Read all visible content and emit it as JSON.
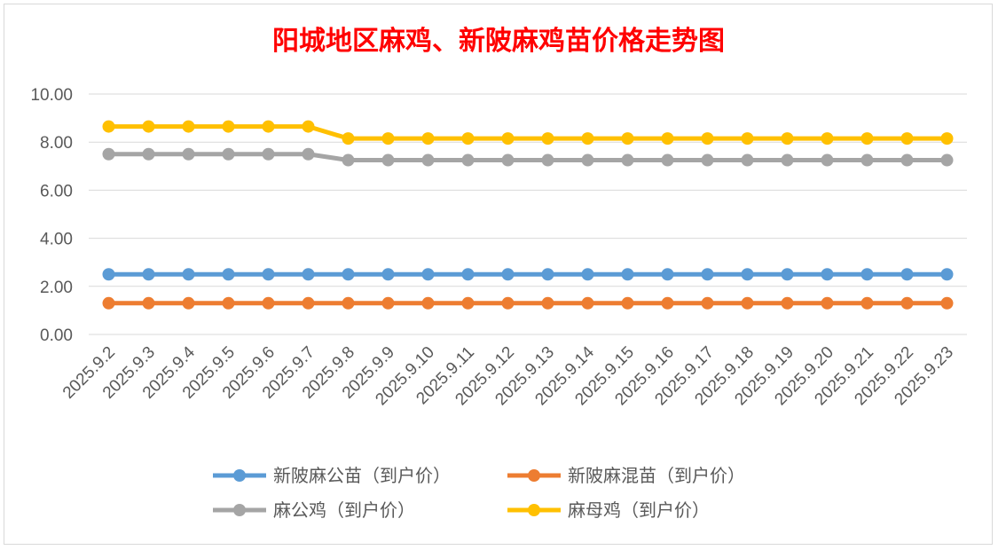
{
  "chart_data": {
    "type": "line",
    "title": "阳城地区麻鸡、新陂麻鸡苗价格走势图",
    "xlabel": "",
    "ylabel": "",
    "ylim": [
      0,
      10
    ],
    "yticks": [
      "0.00",
      "2.00",
      "4.00",
      "6.00",
      "8.00",
      "10.00"
    ],
    "grid": true,
    "legend_position": "bottom",
    "categories": [
      "2025.9.2",
      "2025.9.3",
      "2025.9.4",
      "2025.9.5",
      "2025.9.6",
      "2025.9.7",
      "2025.9.8",
      "2025.9.9",
      "2025.9.10",
      "2025.9.11",
      "2025.9.12",
      "2025.9.13",
      "2025.9.14",
      "2025.9.15",
      "2025.9.16",
      "2025.9.17",
      "2025.9.18",
      "2025.9.19",
      "2025.9.20",
      "2025.9.21",
      "2025.9.22",
      "2025.9.23"
    ],
    "series": [
      {
        "name": "新陂麻公苗（到户价）",
        "color": "#5b9bd5",
        "values": [
          2.5,
          2.5,
          2.5,
          2.5,
          2.5,
          2.5,
          2.5,
          2.5,
          2.5,
          2.5,
          2.5,
          2.5,
          2.5,
          2.5,
          2.5,
          2.5,
          2.5,
          2.5,
          2.5,
          2.5,
          2.5,
          2.5
        ]
      },
      {
        "name": "新陂麻混苗（到户价）",
        "color": "#ed7d31",
        "values": [
          1.3,
          1.3,
          1.3,
          1.3,
          1.3,
          1.3,
          1.3,
          1.3,
          1.3,
          1.3,
          1.3,
          1.3,
          1.3,
          1.3,
          1.3,
          1.3,
          1.3,
          1.3,
          1.3,
          1.3,
          1.3,
          1.3
        ]
      },
      {
        "name": "麻公鸡（到户价）",
        "color": "#a5a5a5",
        "values": [
          7.5,
          7.5,
          7.5,
          7.5,
          7.5,
          7.5,
          7.25,
          7.25,
          7.25,
          7.25,
          7.25,
          7.25,
          7.25,
          7.25,
          7.25,
          7.25,
          7.25,
          7.25,
          7.25,
          7.25,
          7.25,
          7.25
        ]
      },
      {
        "name": "麻母鸡（到户价）",
        "color": "#ffc000",
        "values": [
          8.65,
          8.65,
          8.65,
          8.65,
          8.65,
          8.65,
          8.15,
          8.15,
          8.15,
          8.15,
          8.15,
          8.15,
          8.15,
          8.15,
          8.15,
          8.15,
          8.15,
          8.15,
          8.15,
          8.15,
          8.15,
          8.15
        ]
      }
    ]
  }
}
